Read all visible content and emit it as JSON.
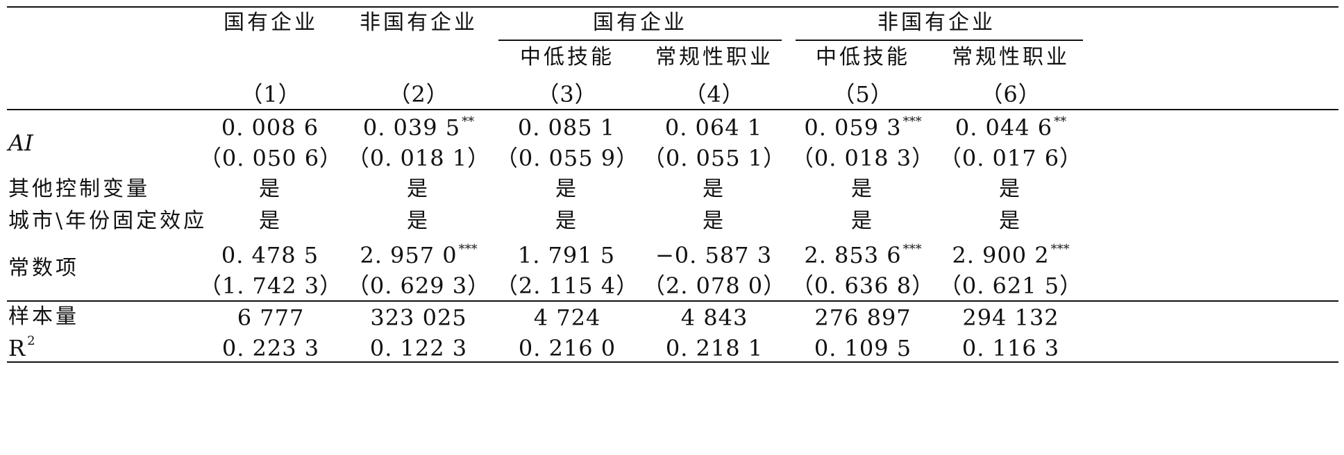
{
  "header": {
    "top": [
      "国有企业",
      "非国有企业",
      "国有企业",
      "非国有企业"
    ],
    "sub": [
      "中低技能",
      "常规性职业",
      "中低技能",
      "常规性职业"
    ],
    "cols": [
      "（1）",
      "（2）",
      "（3）",
      "（4）",
      "（5）",
      "（6）"
    ]
  },
  "rows": {
    "ai": {
      "label": "AI",
      "coef": [
        "0. 008 6",
        "0. 039 5",
        "0. 085 1",
        "0. 064 1",
        "0. 059 3",
        "0. 044 6"
      ],
      "stars": [
        "",
        "**",
        "",
        "",
        "***",
        "**"
      ],
      "se": [
        "（0. 050 6）",
        "（0. 018 1）",
        "（0. 055 9）",
        "（0. 055 1）",
        "（0. 018 3）",
        "（0. 017 6）"
      ]
    },
    "controls": {
      "label": "其他控制变量",
      "values": [
        "是",
        "是",
        "是",
        "是",
        "是",
        "是"
      ]
    },
    "fe": {
      "label": "城市\\年份固定效应",
      "values": [
        "是",
        "是",
        "是",
        "是",
        "是",
        "是"
      ]
    },
    "const": {
      "label": "常数项",
      "coef": [
        "0. 478 5",
        "2. 957 0",
        "1. 791 5",
        "−0. 587 3",
        "2. 853 6",
        "2. 900 2"
      ],
      "stars": [
        "",
        "***",
        "",
        "",
        "***",
        "***"
      ],
      "se": [
        "（1. 742 3）",
        "（0. 629 3）",
        "（2. 115 4）",
        "（2. 078 0）",
        "（0. 636 8）",
        "（0. 621 5）"
      ]
    },
    "n": {
      "label": "样本量",
      "values": [
        "6 777",
        "323 025",
        "4 724",
        "4 843",
        "276 897",
        "294 132"
      ]
    },
    "r2": {
      "label": "R",
      "label_sup": "2",
      "values": [
        "0. 223 3",
        "0. 122 3",
        "0. 216 0",
        "0. 218 1",
        "0. 109 5",
        "0. 116 3"
      ]
    }
  }
}
